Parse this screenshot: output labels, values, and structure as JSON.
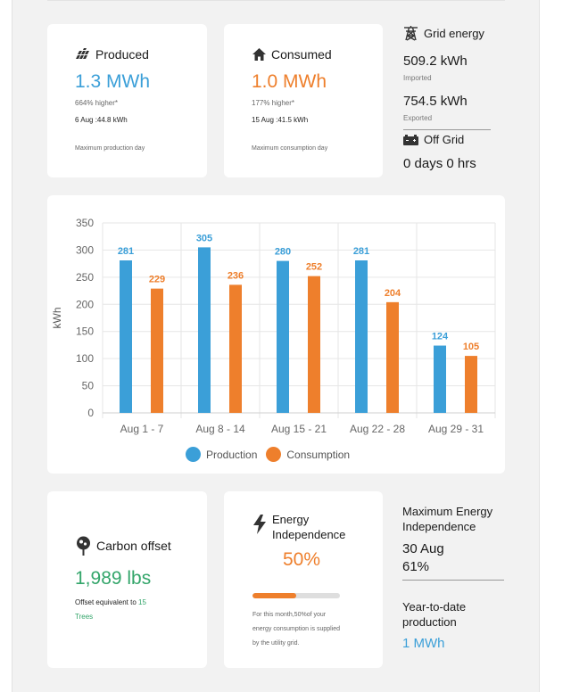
{
  "produced": {
    "title": "Produced",
    "value": "1.3 MWh",
    "change": "664% higher*",
    "peak": "6 Aug :44.8 kWh",
    "note": "Maximum production day",
    "icon": "solar-panel-icon"
  },
  "consumed": {
    "title": "Consumed",
    "value": "1.0 MWh",
    "change": "177% higher*",
    "peak": "15 Aug :41.5 kWh",
    "note": "Maximum consumption day",
    "icon": "home-icon"
  },
  "grid_energy": {
    "title": "Grid energy",
    "imported_value": "509.2 kWh",
    "imported_label": "Imported",
    "exported_value": "754.5 kWh",
    "exported_label": "Exported",
    "icon": "power-tower-icon"
  },
  "off_grid": {
    "title": "Off Grid",
    "value": "0 days 0 hrs",
    "icon": "battery-icon"
  },
  "chart_data": {
    "type": "bar",
    "categories": [
      "Aug 1 - 7",
      "Aug 8 - 14",
      "Aug 15 - 21",
      "Aug 22 - 28",
      "Aug 29 - 31"
    ],
    "series": [
      {
        "name": "Production",
        "values": [
          281,
          305,
          280,
          281,
          124
        ],
        "color": "#3b9fd8"
      },
      {
        "name": "Consumption",
        "values": [
          229,
          236,
          252,
          204,
          105
        ],
        "color": "#ee7f2c"
      }
    ],
    "ylabel": "kWh",
    "ylim": [
      0,
      350
    ],
    "yticks": [
      0,
      50,
      100,
      150,
      200,
      250,
      300,
      350
    ],
    "legend": [
      "Production",
      "Consumption"
    ]
  },
  "carbon": {
    "title": "Carbon offset",
    "value": "1,989 lbs",
    "equiv_prefix": "Offset equivalent to",
    "equiv_count": "15",
    "equiv_unit": "Trees",
    "icon": "tree-icon"
  },
  "independence": {
    "title_line1": "Energy",
    "title_line2": "Independence",
    "value": "50%",
    "progress": 0.5,
    "desc_line1": "For this month,50%of your",
    "desc_line2": "energy consumption is supplied",
    "desc_line3": "by the utility grid.",
    "icon": "lightning-icon"
  },
  "max_independence": {
    "title_line1": "Maximum Energy",
    "title_line2": "Independence",
    "date": "30 Aug",
    "value": "61%"
  },
  "ytd": {
    "title_line1": "Year-to-date",
    "title_line2": "production",
    "value": "1 MWh"
  }
}
